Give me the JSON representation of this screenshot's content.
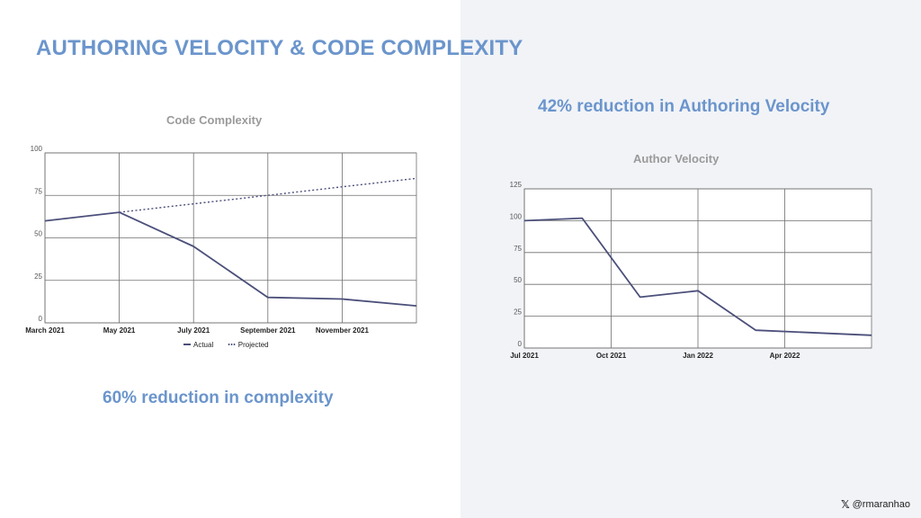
{
  "slide": {
    "title": "AUTHORING VELOCITY & CODE COMPLEXITY",
    "headline_velocity": "42% reduction in Authoring Velocity",
    "headline_complexity": "60% reduction in complexity",
    "handle": "@rmaranhao",
    "handle_icon": "x-logo-icon",
    "colors": {
      "accent": "#6b95cc",
      "line": "#4b4f7a",
      "grid": "#6e6e6e",
      "chart_title": "#9a9a9a",
      "right_panel": "#f1f3f7"
    }
  },
  "chart_data": [
    {
      "type": "line",
      "title": "Code Complexity",
      "xlabel": "",
      "ylabel": "",
      "x_ticks": [
        "March 2021",
        "May 2021",
        "July 2021",
        "September 2021",
        "November 2021"
      ],
      "y_ticks": [
        0,
        25,
        50,
        75,
        100
      ],
      "ylim": [
        0,
        100
      ],
      "grid": true,
      "legend": "bottom",
      "series": [
        {
          "name": "Actual",
          "style": "solid",
          "points": [
            [
              "March 2021",
              60
            ],
            [
              "May 2021",
              65
            ],
            [
              "July 2021",
              45
            ],
            [
              "September 2021",
              15
            ],
            [
              "November 2021",
              14
            ],
            [
              "January 2022",
              10
            ]
          ]
        },
        {
          "name": "Projected",
          "style": "dotted",
          "points": [
            [
              "May 2021",
              65
            ],
            [
              "January 2022",
              85
            ]
          ]
        }
      ]
    },
    {
      "type": "line",
      "title": "Author Velocity",
      "xlabel": "",
      "ylabel": "",
      "x_ticks": [
        "Jul 2021",
        "Oct 2021",
        "Jan 2022",
        "Apr 2022"
      ],
      "y_ticks": [
        0,
        25,
        50,
        75,
        100,
        125
      ],
      "ylim": [
        0,
        125
      ],
      "grid": true,
      "legend": "none",
      "series": [
        {
          "name": "",
          "style": "solid",
          "points": [
            [
              "Jul 2021",
              100
            ],
            [
              "Sep 2021",
              102
            ],
            [
              "Nov 2021",
              40
            ],
            [
              "Jan 2022",
              45
            ],
            [
              "Mar 2022",
              14
            ],
            [
              "Jul 2022",
              10
            ]
          ]
        }
      ]
    }
  ]
}
